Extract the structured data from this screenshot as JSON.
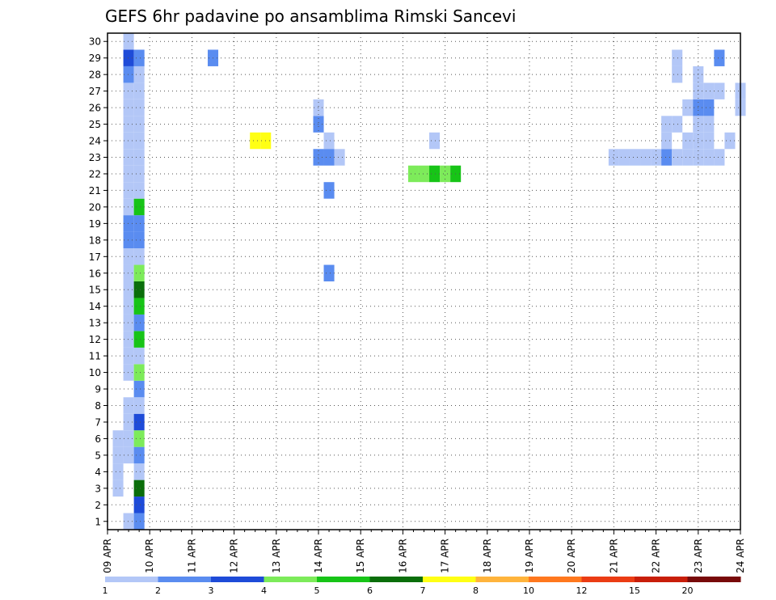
{
  "chart_data": {
    "type": "heatmap",
    "title": "GEFS 6hr padavine po ansamblima Rimski Sancevi",
    "x_ticks": [
      "09 APR",
      "10 APR",
      "11 APR",
      "12 APR",
      "13 APR",
      "14 APR",
      "15 APR",
      "16 APR",
      "17 APR",
      "18 APR",
      "19 APR",
      "20 APR",
      "21 APR",
      "22 APR",
      "23 APR",
      "24 APR"
    ],
    "y_ticks": [
      "1",
      "2",
      "3",
      "4",
      "5",
      "6",
      "7",
      "8",
      "9",
      "10",
      "11",
      "12",
      "13",
      "14",
      "15",
      "16",
      "17",
      "18",
      "19",
      "20",
      "21",
      "22",
      "23",
      "24",
      "25",
      "26",
      "27",
      "28",
      "29",
      "30"
    ],
    "xlim": [
      0,
      60
    ],
    "ylim": [
      0.5,
      30.5
    ],
    "grid": true,
    "legend_labels": [
      "1",
      "2",
      "3",
      "4",
      "5",
      "6",
      "7",
      "8",
      "10",
      "12",
      "15",
      "20"
    ],
    "colors": [
      "#b3c7f7",
      "#5a8cf0",
      "#1e4bd8",
      "#7deb5a",
      "#17c417",
      "#0a6e0a",
      "#ffff14",
      "#ffb43c",
      "#ff781e",
      "#eb3c14",
      "#c81e0a",
      "#780a0a"
    ],
    "cells": [
      [
        1,
        3,
        1
      ],
      [
        1,
        4,
        1
      ],
      [
        1,
        5,
        1
      ],
      [
        1,
        6,
        1
      ],
      [
        2,
        1,
        1
      ],
      [
        2,
        5,
        1
      ],
      [
        2,
        6,
        1
      ],
      [
        2,
        7,
        1
      ],
      [
        2,
        8,
        1
      ],
      [
        2,
        10,
        1
      ],
      [
        2,
        11,
        1
      ],
      [
        2,
        12,
        1
      ],
      [
        2,
        13,
        1
      ],
      [
        2,
        14,
        1
      ],
      [
        2,
        15,
        1
      ],
      [
        2,
        16,
        1
      ],
      [
        2,
        17,
        1
      ],
      [
        2,
        18,
        2
      ],
      [
        2,
        19,
        2
      ],
      [
        2,
        20,
        1
      ],
      [
        2,
        21,
        1
      ],
      [
        2,
        22,
        1
      ],
      [
        2,
        23,
        1
      ],
      [
        2,
        24,
        1
      ],
      [
        2,
        25,
        1
      ],
      [
        2,
        26,
        1
      ],
      [
        2,
        27,
        1
      ],
      [
        2,
        28,
        2
      ],
      [
        2,
        29,
        3
      ],
      [
        2,
        30,
        1
      ],
      [
        3,
        1,
        2
      ],
      [
        3,
        2,
        3
      ],
      [
        3,
        3,
        6
      ],
      [
        3,
        4,
        1
      ],
      [
        3,
        5,
        2
      ],
      [
        3,
        6,
        4
      ],
      [
        3,
        7,
        3
      ],
      [
        3,
        8,
        1
      ],
      [
        3,
        9,
        2
      ],
      [
        3,
        10,
        4
      ],
      [
        3,
        11,
        1
      ],
      [
        3,
        12,
        5
      ],
      [
        3,
        13,
        2
      ],
      [
        3,
        14,
        5
      ],
      [
        3,
        15,
        6
      ],
      [
        3,
        16,
        4
      ],
      [
        3,
        17,
        1
      ],
      [
        3,
        18,
        2
      ],
      [
        3,
        19,
        2
      ],
      [
        3,
        20,
        5
      ],
      [
        3,
        21,
        1
      ],
      [
        3,
        22,
        1
      ],
      [
        3,
        23,
        1
      ],
      [
        3,
        24,
        1
      ],
      [
        3,
        25,
        1
      ],
      [
        3,
        26,
        1
      ],
      [
        3,
        27,
        1
      ],
      [
        3,
        28,
        1
      ],
      [
        3,
        29,
        2
      ],
      [
        10,
        29,
        2
      ],
      [
        20,
        25,
        2
      ],
      [
        21,
        16,
        2
      ],
      [
        21,
        21,
        2
      ],
      [
        21,
        24,
        1
      ],
      [
        14,
        24,
        7
      ],
      [
        15,
        24,
        7
      ],
      [
        20,
        23,
        2
      ],
      [
        20,
        26,
        1
      ],
      [
        21,
        23,
        2
      ],
      [
        22,
        23,
        1
      ],
      [
        29,
        22,
        4
      ],
      [
        30,
        22,
        4
      ],
      [
        31,
        22,
        5
      ],
      [
        31,
        24,
        1
      ],
      [
        32,
        22,
        4
      ],
      [
        33,
        22,
        5
      ],
      [
        48,
        23,
        1
      ],
      [
        49,
        23,
        1
      ],
      [
        50,
        23,
        1
      ],
      [
        51,
        23,
        1
      ],
      [
        52,
        23,
        1
      ],
      [
        53,
        23,
        2
      ],
      [
        53,
        24,
        1
      ],
      [
        53,
        25,
        1
      ],
      [
        54,
        23,
        1
      ],
      [
        54,
        25,
        1
      ],
      [
        54,
        28,
        1
      ],
      [
        54,
        29,
        1
      ],
      [
        55,
        23,
        1
      ],
      [
        55,
        24,
        1
      ],
      [
        55,
        26,
        1
      ],
      [
        56,
        23,
        1
      ],
      [
        56,
        24,
        1
      ],
      [
        56,
        25,
        1
      ],
      [
        56,
        26,
        2
      ],
      [
        56,
        27,
        1
      ],
      [
        56,
        28,
        1
      ],
      [
        57,
        23,
        1
      ],
      [
        57,
        24,
        1
      ],
      [
        57,
        25,
        1
      ],
      [
        57,
        26,
        2
      ],
      [
        57,
        27,
        1
      ],
      [
        58,
        23,
        1
      ],
      [
        58,
        27,
        1
      ],
      [
        58,
        29,
        2
      ],
      [
        59,
        24,
        1
      ],
      [
        60,
        26,
        1
      ],
      [
        60,
        27,
        1
      ]
    ]
  }
}
